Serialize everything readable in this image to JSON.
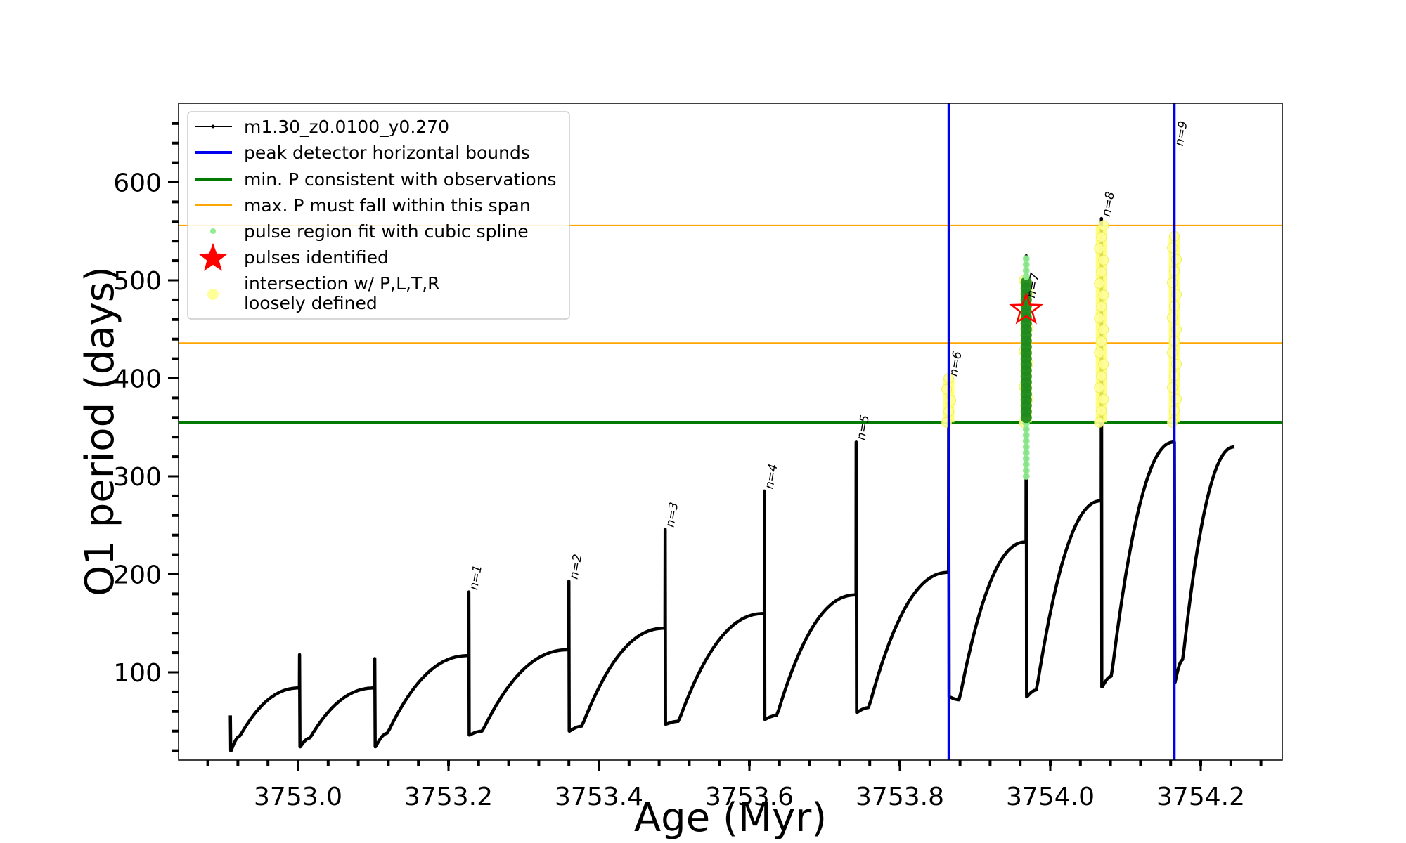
{
  "chart_data": {
    "type": "line",
    "xlabel": "Age (Myr)",
    "ylabel": "O1 period (days)",
    "xlim": [
      3752.8,
      3754.3
    ],
    "ylim": [
      10,
      680
    ],
    "xticks": [
      3753.0,
      3753.2,
      3753.4,
      3753.6,
      3753.8,
      3754.0,
      3754.2
    ],
    "xtick_labels": [
      "3753.0",
      "3753.2",
      "3753.4",
      "3753.6",
      "3753.8",
      "3754.0",
      "3754.2"
    ],
    "yticks": [
      100,
      200,
      300,
      400,
      500,
      600
    ],
    "ytick_labels": [
      "100",
      "200",
      "300",
      "400",
      "500",
      "600"
    ],
    "legend_position": "upper-left",
    "legend": [
      {
        "label": "m1.30_z0.0100_y0.270",
        "kind": "line-marker",
        "color": "#000000"
      },
      {
        "label": "peak detector horizontal bounds",
        "kind": "line",
        "color": "#0000ee"
      },
      {
        "label": "min. P consistent with observations",
        "kind": "thick-line",
        "color": "#007a00"
      },
      {
        "label": "max. P must fall within this span",
        "kind": "thin-line",
        "color": "#ffa500"
      },
      {
        "label": "pulse region fit with cubic spline",
        "kind": "dot",
        "color": "#90ee90"
      },
      {
        "label": "pulses identified",
        "kind": "star",
        "color": "#ff0000"
      },
      {
        "label": "intersection w/ P,L,T,R",
        "label2": "loosely defined",
        "kind": "big-dot",
        "color": "#ffff99"
      }
    ],
    "series": [
      {
        "name": "m1.30_z0.0100_y0.270",
        "color": "#000000",
        "cycles": [
          {
            "start": 3752.91,
            "end": 3753.002,
            "spike_top": 56,
            "after_drop": 20,
            "min": 35,
            "pre_peak": 84
          },
          {
            "start": 3753.002,
            "end": 3753.102,
            "spike_top": 118,
            "after_drop": 24,
            "min": 33,
            "pre_peak": 84
          },
          {
            "start": 3753.102,
            "end": 3753.227,
            "spike_top": 114,
            "after_drop": 24,
            "min": 38,
            "pre_peak": 117
          },
          {
            "start": 3753.227,
            "end": 3753.36,
            "spike_top": 182,
            "after_drop": 36,
            "min": 40,
            "pre_peak": 123
          },
          {
            "start": 3753.36,
            "end": 3753.488,
            "spike_top": 193,
            "after_drop": 40,
            "min": 45,
            "pre_peak": 145
          },
          {
            "start": 3753.488,
            "end": 3753.62,
            "spike_top": 246,
            "after_drop": 47,
            "min": 50,
            "pre_peak": 160
          },
          {
            "start": 3753.62,
            "end": 3753.742,
            "spike_top": 285,
            "after_drop": 52,
            "min": 56,
            "pre_peak": 179
          },
          {
            "start": 3753.742,
            "end": 3753.865,
            "spike_top": 335,
            "after_drop": 59,
            "min": 64,
            "pre_peak": 202
          },
          {
            "start": 3753.865,
            "end": 3753.968,
            "spike_top": 360,
            "after_drop": 75,
            "min": 72,
            "pre_peak": 233
          },
          {
            "start": 3753.968,
            "end": 3754.068,
            "spike_top": 525,
            "after_drop": 75,
            "min": 82,
            "pre_peak": 275
          },
          {
            "start": 3754.068,
            "end": 3754.165,
            "spike_top": 563,
            "after_drop": 85,
            "min": 96,
            "pre_peak": 335
          },
          {
            "start": 3754.165,
            "end": 3754.245,
            "spike_top": 335,
            "after_drop": 90,
            "min": 113,
            "pre_peak": 330
          }
        ]
      }
    ],
    "pulse_labels": [
      {
        "label": "n=1",
        "x": 3753.227,
        "y": 182
      },
      {
        "label": "n=2",
        "x": 3753.36,
        "y": 193
      },
      {
        "label": "n=3",
        "x": 3753.488,
        "y": 246
      },
      {
        "label": "n=4",
        "x": 3753.62,
        "y": 285
      },
      {
        "label": "n=5",
        "x": 3753.742,
        "y": 335
      },
      {
        "label": "n=6",
        "x": 3753.865,
        "y": 400
      },
      {
        "label": "n=7",
        "x": 3753.968,
        "y": 480
      },
      {
        "label": "n=8",
        "x": 3754.068,
        "y": 563
      },
      {
        "label": "n=9",
        "x": 3754.165,
        "y": 635
      }
    ],
    "vertical_lines": [
      {
        "x": 3753.865,
        "color": "#0000ee"
      },
      {
        "x": 3754.165,
        "color": "#0000ee"
      }
    ],
    "horizontal_lines": [
      {
        "y": 355,
        "color": "#007a00",
        "role": "min"
      },
      {
        "y": 436,
        "color": "#ffa500",
        "role": "max-span-lower"
      },
      {
        "y": 556,
        "color": "#ffa500",
        "role": "max-span-upper"
      }
    ],
    "spline_regions": [
      {
        "x": 3753.968,
        "y_from": 300,
        "y_to": 525
      }
    ],
    "pulses_identified": [
      {
        "x": 3753.968,
        "y": 470
      }
    ],
    "intersections": [
      {
        "x": 3753.865,
        "y_from": 355,
        "y_to": 400
      },
      {
        "x": 3753.968,
        "y_from": 355,
        "y_to": 500
      },
      {
        "x": 3754.068,
        "y_from": 355,
        "y_to": 556
      },
      {
        "x": 3754.165,
        "y_from": 355,
        "y_to": 545
      }
    ]
  }
}
